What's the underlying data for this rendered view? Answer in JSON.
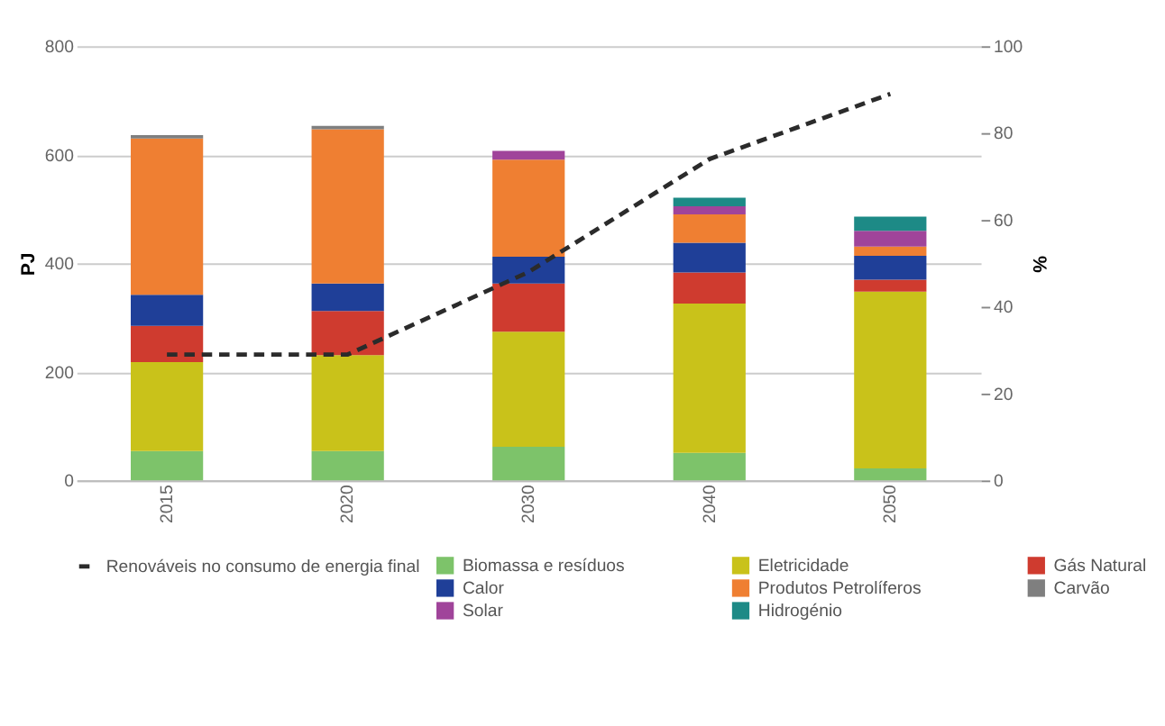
{
  "chart_data": {
    "type": "bar",
    "stacked": true,
    "ylabel": "PJ",
    "y2label": "%",
    "categories": [
      "2015",
      "2020",
      "2030",
      "2040",
      "2050"
    ],
    "ylim": [
      0,
      800
    ],
    "yticks": [
      0,
      200,
      400,
      600,
      800
    ],
    "y2lim": [
      0,
      100
    ],
    "y2ticks": [
      0,
      20,
      40,
      60,
      80,
      100
    ],
    "grid": "y",
    "legend": "bottom",
    "series": [
      {
        "name": "Biomassa e resíduos",
        "color": "#7dc36a",
        "values": [
          54,
          54,
          62,
          51,
          22
        ]
      },
      {
        "name": "Eletricidade",
        "color": "#c9c21a",
        "values": [
          164,
          177,
          212,
          275,
          326
        ]
      },
      {
        "name": "Gás Natural",
        "color": "#cf3b2f",
        "values": [
          67,
          81,
          89,
          57,
          22
        ]
      },
      {
        "name": "Calor",
        "color": "#1f3f98",
        "values": [
          57,
          51,
          49,
          55,
          44
        ]
      },
      {
        "name": "Produtos Petrolíferos",
        "color": "#ef7f32",
        "values": [
          288,
          284,
          179,
          52,
          17
        ]
      },
      {
        "name": "Carvão",
        "color": "#7f7f7f",
        "values": [
          6,
          6,
          null,
          null,
          null
        ]
      },
      {
        "name": "Solar",
        "color": "#a0449a",
        "values": [
          null,
          null,
          16,
          15,
          29
        ]
      },
      {
        "name": "Hidrogénio",
        "color": "#1d8a86",
        "values": [
          null,
          null,
          null,
          16,
          26
        ]
      },
      {
        "name": "Renováveis no consumo de energia final",
        "type": "line",
        "axis": "y2",
        "color": "#2b2b2b",
        "line_style": "dashed",
        "marker": "none",
        "values": [
          29,
          29,
          48,
          74,
          89
        ]
      }
    ]
  }
}
